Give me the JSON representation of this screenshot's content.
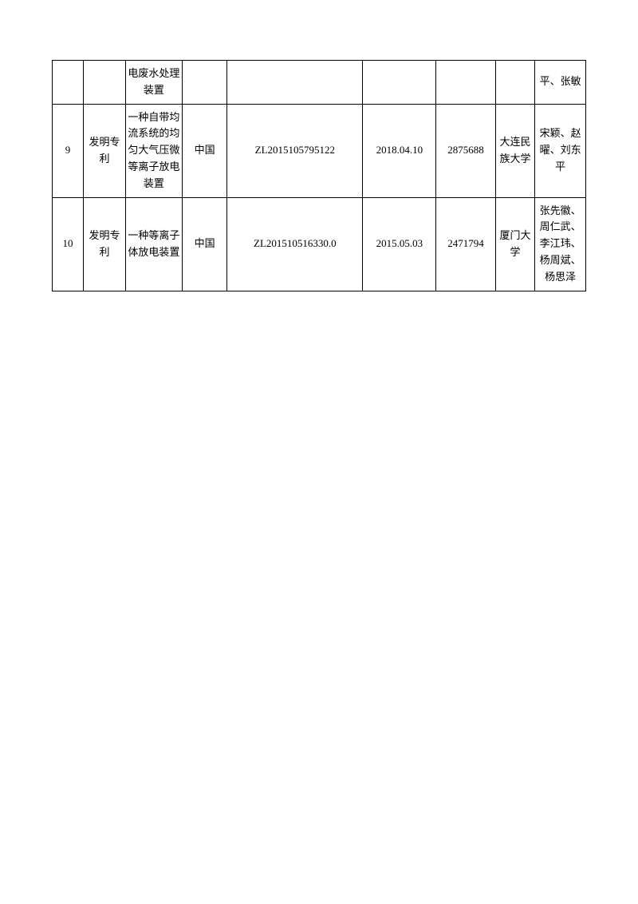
{
  "table": {
    "columns": {
      "widths": [
        "5.5%",
        "7.5%",
        "10%",
        "8%",
        "24%",
        "13%",
        "10.5%",
        "7%",
        "9%"
      ],
      "border_color": "#000000",
      "text_color": "#000000",
      "font_size_default": 13,
      "font_size_small": 12,
      "background_color": "#ffffff"
    },
    "rows": [
      {
        "no": "",
        "type": "",
        "name": "电废水处理装置",
        "country": "",
        "zl": "",
        "date": "",
        "id": "",
        "org": "",
        "people": "平、张敏"
      },
      {
        "no": "9",
        "type": "发明专利",
        "name": "一种自带均流系统的均匀大气压微等离子放电装置",
        "country": "中国",
        "zl": "ZL2015105795122",
        "date": "2018.04.10",
        "id": "2875688",
        "org": "大连民族大学",
        "people": "宋颖、赵曜、刘东平"
      },
      {
        "no": "10",
        "type": "发明专利",
        "name": "一种等离子体放电装置",
        "country": "中国",
        "zl": "ZL201510516330.0",
        "date": "2015.05.03",
        "id": "2471794",
        "org": "厦门大学",
        "people": "张先徽、周仁武、李江玮、杨周斌、杨思泽"
      }
    ]
  }
}
